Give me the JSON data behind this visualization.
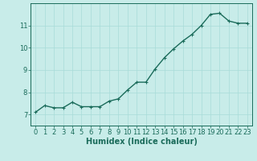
{
  "xlabel": "Humidex (Indice chaleur)",
  "background_color": "#c8ece9",
  "line_color": "#1a6b5a",
  "marker": "+",
  "x": [
    0,
    1,
    2,
    3,
    4,
    5,
    6,
    7,
    8,
    9,
    10,
    11,
    12,
    13,
    14,
    15,
    16,
    17,
    18,
    19,
    20,
    21,
    22,
    23
  ],
  "y": [
    7.1,
    7.4,
    7.3,
    7.3,
    7.55,
    7.35,
    7.35,
    7.35,
    7.6,
    7.7,
    8.1,
    8.45,
    8.45,
    9.05,
    9.55,
    9.95,
    10.3,
    10.6,
    11.0,
    11.5,
    11.55,
    11.2,
    11.1,
    11.1
  ],
  "ylim": [
    6.5,
    12.0
  ],
  "xlim": [
    -0.5,
    23.5
  ],
  "yticks": [
    7,
    8,
    9,
    10,
    11
  ],
  "xticks": [
    0,
    1,
    2,
    3,
    4,
    5,
    6,
    7,
    8,
    9,
    10,
    11,
    12,
    13,
    14,
    15,
    16,
    17,
    18,
    19,
    20,
    21,
    22,
    23
  ],
  "grid_color": "#a8dcd8",
  "spine_color": "#1a6b5a",
  "label_color": "#1a6b5a",
  "fontsize_label": 7,
  "fontsize_tick": 6,
  "linewidth": 1.0
}
